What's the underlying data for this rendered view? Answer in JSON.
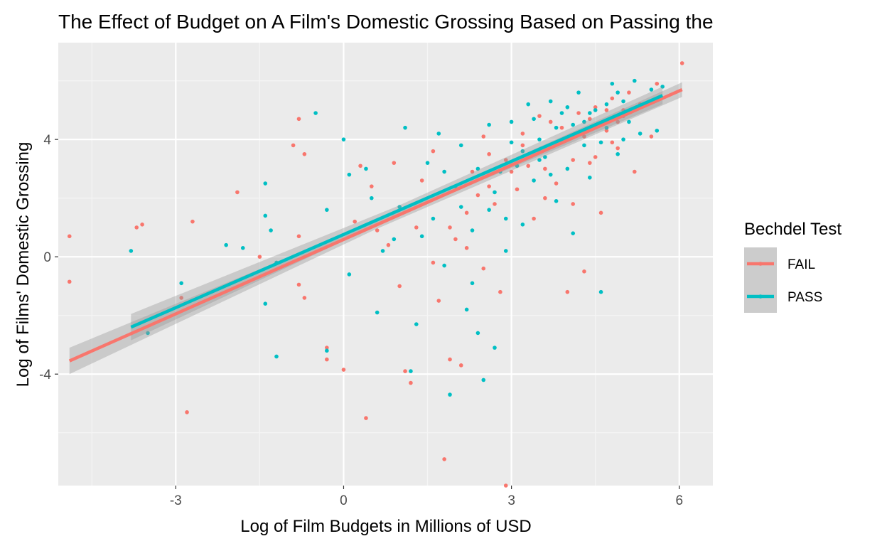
{
  "chart_data": {
    "type": "scatter",
    "title": "The Effect of Budget on A Film's Domestic Grossing Based on Passing the",
    "xlabel": "Log of Film Budgets in Millions of USD",
    "ylabel": "Log of Films' Domestic Grossing",
    "xlim": [
      -5.1,
      6.6
    ],
    "ylim": [
      -7.8,
      7.3
    ],
    "x_ticks": [
      -3,
      0,
      3,
      6
    ],
    "y_ticks": [
      -4,
      0,
      4
    ],
    "grid": true,
    "legend": {
      "title": "Bechdel Test",
      "placement": "right",
      "entries": [
        "FAIL",
        "PASS"
      ]
    },
    "series": [
      {
        "name": "FAIL",
        "color": "#F8766D",
        "fit": {
          "x": [
            -4.9,
            6.05
          ],
          "y": [
            -3.55,
            5.7
          ],
          "ci_halfwidth_at_ends": [
            0.45,
            0.25
          ]
        },
        "points": [
          [
            -4.9,
            0.7
          ],
          [
            -4.9,
            -0.85
          ],
          [
            -3.7,
            1.0
          ],
          [
            -3.6,
            1.1
          ],
          [
            -2.8,
            -5.3
          ],
          [
            -2.7,
            1.2
          ],
          [
            -2.9,
            -1.4
          ],
          [
            -1.9,
            2.2
          ],
          [
            -1.5,
            0.0
          ],
          [
            -0.9,
            3.8
          ],
          [
            -0.8,
            4.7
          ],
          [
            -0.7,
            3.5
          ],
          [
            -0.8,
            -0.95
          ],
          [
            -0.7,
            -1.4
          ],
          [
            -0.8,
            0.7
          ],
          [
            -0.3,
            -3.1
          ],
          [
            -0.3,
            -3.5
          ],
          [
            0.0,
            -3.85
          ],
          [
            0.2,
            1.2
          ],
          [
            0.3,
            3.1
          ],
          [
            0.4,
            -5.5
          ],
          [
            0.5,
            2.4
          ],
          [
            0.6,
            0.9
          ],
          [
            0.8,
            0.4
          ],
          [
            0.9,
            3.2
          ],
          [
            1.0,
            -1.0
          ],
          [
            1.1,
            -3.9
          ],
          [
            1.2,
            -4.3
          ],
          [
            1.3,
            1.0
          ],
          [
            1.4,
            2.6
          ],
          [
            1.6,
            -0.2
          ],
          [
            1.7,
            -1.5
          ],
          [
            1.8,
            -6.9
          ],
          [
            1.9,
            -3.5
          ],
          [
            2.0,
            0.6
          ],
          [
            2.1,
            -3.7
          ],
          [
            2.2,
            1.5
          ],
          [
            2.4,
            2.1
          ],
          [
            2.5,
            -0.4
          ],
          [
            2.6,
            3.5
          ],
          [
            2.7,
            1.8
          ],
          [
            2.8,
            -1.2
          ],
          [
            2.9,
            -7.8
          ],
          [
            3.0,
            2.9
          ],
          [
            3.2,
            4.2
          ],
          [
            3.4,
            1.3
          ],
          [
            3.5,
            3.6
          ],
          [
            3.6,
            2.0
          ],
          [
            3.7,
            4.6
          ],
          [
            3.8,
            2.5
          ],
          [
            3.9,
            3.9
          ],
          [
            4.0,
            -1.2
          ],
          [
            4.1,
            1.8
          ],
          [
            4.2,
            4.9
          ],
          [
            4.3,
            -0.5
          ],
          [
            4.4,
            3.2
          ],
          [
            4.5,
            5.1
          ],
          [
            4.6,
            1.5
          ],
          [
            4.7,
            4.3
          ],
          [
            4.8,
            5.4
          ],
          [
            4.9,
            3.7
          ],
          [
            5.0,
            4.8
          ],
          [
            5.1,
            5.6
          ],
          [
            5.2,
            2.9
          ],
          [
            5.3,
            5.2
          ],
          [
            5.5,
            4.1
          ],
          [
            5.6,
            5.9
          ],
          [
            6.05,
            6.6
          ],
          [
            3.1,
            2.3
          ],
          [
            3.3,
            3.1
          ],
          [
            3.6,
            3.0
          ],
          [
            3.9,
            4.4
          ],
          [
            4.0,
            4.0
          ],
          [
            4.3,
            4.1
          ],
          [
            4.5,
            3.4
          ],
          [
            4.7,
            5.0
          ],
          [
            4.9,
            4.6
          ],
          [
            2.3,
            2.9
          ],
          [
            2.6,
            2.4
          ],
          [
            2.9,
            3.3
          ],
          [
            3.2,
            3.8
          ],
          [
            3.5,
            4.8
          ],
          [
            4.1,
            3.3
          ],
          [
            4.4,
            4.7
          ],
          [
            4.8,
            3.9
          ],
          [
            5.0,
            5.0
          ],
          [
            1.6,
            3.6
          ],
          [
            1.9,
            1.0
          ],
          [
            2.2,
            0.3
          ],
          [
            2.5,
            4.1
          ]
        ]
      },
      {
        "name": "PASS",
        "color": "#00BFC4",
        "fit": {
          "x": [
            -3.8,
            5.7
          ],
          "y": [
            -2.4,
            5.5
          ],
          "ci_halfwidth_at_ends": [
            0.45,
            0.3
          ]
        },
        "points": [
          [
            -3.8,
            0.2
          ],
          [
            -3.5,
            -2.6
          ],
          [
            -2.9,
            -0.9
          ],
          [
            -2.1,
            0.4
          ],
          [
            -1.8,
            0.3
          ],
          [
            -1.4,
            2.5
          ],
          [
            -1.4,
            1.4
          ],
          [
            -1.3,
            0.9
          ],
          [
            -1.4,
            -1.6
          ],
          [
            -1.2,
            -3.4
          ],
          [
            -1.2,
            -0.2
          ],
          [
            -0.5,
            4.9
          ],
          [
            -0.3,
            1.6
          ],
          [
            -0.3,
            -3.2
          ],
          [
            0.0,
            4.0
          ],
          [
            0.1,
            2.8
          ],
          [
            0.1,
            -0.6
          ],
          [
            0.4,
            3.0
          ],
          [
            0.5,
            2.0
          ],
          [
            0.6,
            -1.9
          ],
          [
            0.7,
            0.2
          ],
          [
            0.9,
            0.6
          ],
          [
            1.0,
            1.7
          ],
          [
            1.1,
            4.4
          ],
          [
            1.2,
            -3.9
          ],
          [
            1.3,
            -2.3
          ],
          [
            1.4,
            0.7
          ],
          [
            1.5,
            3.2
          ],
          [
            1.6,
            1.3
          ],
          [
            1.7,
            4.2
          ],
          [
            1.8,
            -0.3
          ],
          [
            1.9,
            -4.7
          ],
          [
            2.0,
            2.4
          ],
          [
            2.1,
            3.8
          ],
          [
            2.2,
            -1.8
          ],
          [
            2.3,
            0.9
          ],
          [
            2.4,
            -2.6
          ],
          [
            2.5,
            -4.2
          ],
          [
            2.6,
            1.6
          ],
          [
            2.7,
            -3.1
          ],
          [
            2.8,
            2.9
          ],
          [
            2.9,
            0.2
          ],
          [
            3.0,
            4.6
          ],
          [
            3.1,
            3.1
          ],
          [
            3.2,
            1.1
          ],
          [
            3.3,
            5.2
          ],
          [
            3.4,
            2.6
          ],
          [
            3.5,
            4.0
          ],
          [
            3.6,
            3.4
          ],
          [
            3.7,
            5.3
          ],
          [
            3.8,
            1.9
          ],
          [
            3.9,
            4.9
          ],
          [
            4.0,
            3.0
          ],
          [
            4.1,
            0.8
          ],
          [
            4.2,
            5.6
          ],
          [
            4.3,
            3.8
          ],
          [
            4.4,
            2.7
          ],
          [
            4.5,
            5.0
          ],
          [
            4.6,
            -1.2
          ],
          [
            4.7,
            4.4
          ],
          [
            4.8,
            5.9
          ],
          [
            4.9,
            3.5
          ],
          [
            5.0,
            5.3
          ],
          [
            5.1,
            4.6
          ],
          [
            5.2,
            6.0
          ],
          [
            5.3,
            4.2
          ],
          [
            5.5,
            5.7
          ],
          [
            5.6,
            4.3
          ],
          [
            5.7,
            5.8
          ],
          [
            3.2,
            3.6
          ],
          [
            3.5,
            3.3
          ],
          [
            3.8,
            4.4
          ],
          [
            4.1,
            4.5
          ],
          [
            4.4,
            4.9
          ],
          [
            4.7,
            5.2
          ],
          [
            5.0,
            4.0
          ],
          [
            2.4,
            3.0
          ],
          [
            2.7,
            2.2
          ],
          [
            3.0,
            3.9
          ],
          [
            3.4,
            4.7
          ],
          [
            3.7,
            2.8
          ],
          [
            4.0,
            5.1
          ],
          [
            4.3,
            4.6
          ],
          [
            4.6,
            3.9
          ],
          [
            4.9,
            5.6
          ],
          [
            1.8,
            2.9
          ],
          [
            2.1,
            1.7
          ],
          [
            2.3,
            -0.9
          ],
          [
            2.6,
            4.5
          ],
          [
            2.9,
            1.3
          ]
        ]
      }
    ]
  },
  "colors": {
    "panel_bg": "#EBEBEB",
    "grid_major": "#FFFFFF",
    "grid_minor": "#F5F5F5",
    "ci_band": "#999999",
    "legend_key_bg": "#CCCCCC"
  }
}
